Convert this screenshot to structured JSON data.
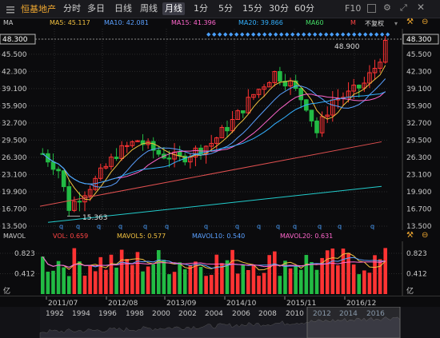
{
  "toolbar": {
    "title": "恒基地产",
    "periods": [
      "分时",
      "多日",
      "日线",
      "周线",
      "月线",
      "1分",
      "5分",
      "15分",
      "30分",
      "60分"
    ],
    "active_period": "月线",
    "right_label": "F10"
  },
  "ma_legend": {
    "label": "MA",
    "items": [
      {
        "text": "MA5: 45.117",
        "color": "#f0c040"
      },
      {
        "text": "MA10: 42.081",
        "color": "#5aa0ff"
      },
      {
        "text": "MA15: 41.396",
        "color": "#ff66cc"
      },
      {
        "text": "MA20: 39.866",
        "color": "#33b0ff"
      },
      {
        "text": "MA60",
        "color": "#44dd66"
      },
      {
        "text": "M",
        "color": "#ff4444"
      }
    ],
    "fq_label": "不复权"
  },
  "price_axis": {
    "ticks": [
      "48.300",
      "45.500",
      "42.300",
      "39.100",
      "35.900",
      "32.700",
      "29.500",
      "26.300",
      "23.100",
      "19.900",
      "16.700",
      "13.500"
    ]
  },
  "annotations": {
    "high": "48.900",
    "low": "15.363",
    "high_tag": "48.300",
    "left_tag": "48.300"
  },
  "vol_legend": {
    "label": "MAVOL",
    "items": [
      {
        "text": "VOL: 0.659",
        "color": "#ff4444"
      },
      {
        "text": "MAVOL5: 0.577",
        "color": "#f0c040"
      },
      {
        "text": "MAVOL10: 0.540",
        "color": "#5aa0ff"
      },
      {
        "text": "MAVOL20: 0.631",
        "color": "#ff66cc"
      }
    ]
  },
  "vol_axis": {
    "ticks": [
      "0.823",
      "0.412"
    ],
    "unit": "亿"
  },
  "date_axis": [
    "2011/07",
    "2012/08",
    "2013/09",
    "2014/10",
    "2015/11",
    "2016/12"
  ],
  "overview_years": [
    "1992",
    "1994",
    "1996",
    "1998",
    "2000",
    "2002",
    "2004",
    "2006",
    "2008",
    "2010",
    "2012",
    "2014",
    "2016"
  ],
  "q_marker": "q",
  "colors": {
    "up": "#ff3333",
    "down": "#22bb44",
    "ma5": "#f0c040",
    "ma10": "#5aa0ff",
    "ma20": "#33b0ff",
    "ma60_red": "#e05050",
    "ma_cyan": "#22cccc",
    "grid": "#2a2a2a"
  }
}
